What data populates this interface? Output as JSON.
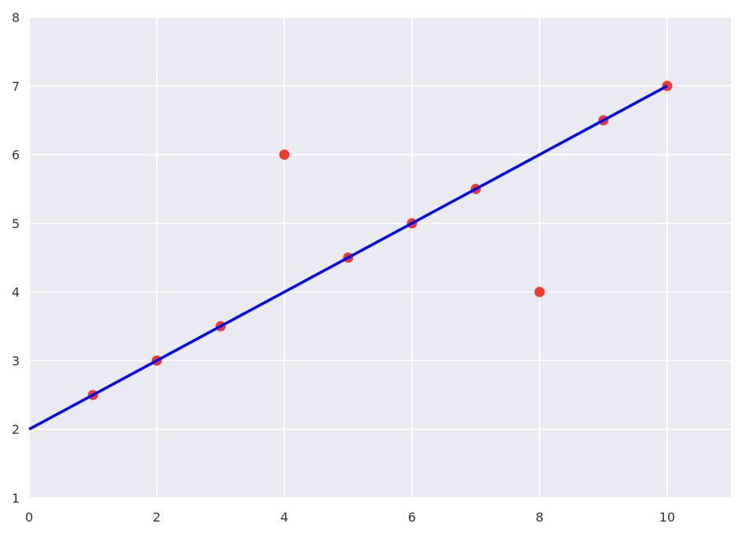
{
  "chart_data": {
    "type": "scatter",
    "title": "",
    "xlabel": "",
    "ylabel": "",
    "xlim": [
      0,
      11
    ],
    "ylim": [
      1,
      8
    ],
    "xticks": [
      "0",
      "2",
      "4",
      "6",
      "8",
      "10"
    ],
    "yticks": [
      "1",
      "2",
      "3",
      "4",
      "5",
      "6",
      "7",
      "8"
    ],
    "grid": true,
    "background_color": "#eaeaf2",
    "points": {
      "color": "#f03a2a",
      "x": [
        1,
        2,
        3,
        4,
        5,
        6,
        7,
        8,
        9,
        10
      ],
      "y": [
        2.5,
        3,
        3.5,
        6,
        4.5,
        5,
        5.5,
        4,
        6.5,
        7
      ]
    },
    "line": {
      "color": "#0000ff",
      "x": [
        0,
        10
      ],
      "y": [
        2,
        7
      ]
    }
  }
}
